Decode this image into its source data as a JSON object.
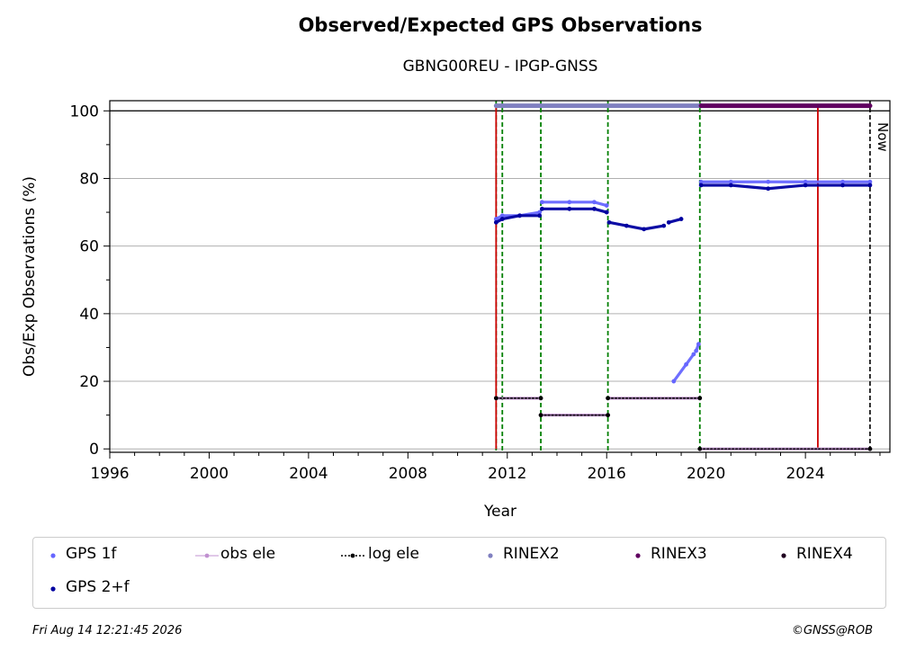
{
  "chart_data": {
    "type": "scatter",
    "title": "Observed/Expected GPS Observations",
    "subtitle": "GBNG00REU - IPGP-GNSS",
    "xlabel": "Year",
    "ylabel": "Obs/Exp Observations (%)",
    "xlim": [
      1996,
      2027.4
    ],
    "ylim": [
      -1,
      103
    ],
    "xticks": [
      1996,
      2000,
      2004,
      2008,
      2012,
      2016,
      2020,
      2024
    ],
    "yticks": [
      0,
      20,
      40,
      60,
      80,
      100
    ],
    "grid": "horizontal",
    "now_label": "Now",
    "now_x": 2026.6,
    "red_lines": [
      2011.55,
      2024.5
    ],
    "green_dashed_lines": [
      2011.55,
      2011.8,
      2013.35,
      2016.05,
      2019.75
    ],
    "series": [
      {
        "name": "GPS 1f",
        "color": "#6666ff",
        "segments": [
          {
            "x": [
              2011.55,
              2011.8,
              2012.5,
              2013.3
            ],
            "y": [
              68,
              69,
              69,
              70
            ]
          },
          {
            "x": [
              2013.4,
              2014.5,
              2015.5,
              2016.0
            ],
            "y": [
              73,
              73,
              73,
              72
            ]
          },
          {
            "x": [
              2018.7,
              2019.2,
              2019.5
            ],
            "y": [
              20,
              25,
              28
            ]
          },
          {
            "x": [
              2019.6,
              2019.7
            ],
            "y": [
              29,
              31
            ]
          },
          {
            "x": [
              2019.8,
              2021.0,
              2022.5,
              2024.0,
              2025.5,
              2026.6
            ],
            "y": [
              79,
              79,
              79,
              79,
              79,
              79
            ]
          }
        ]
      },
      {
        "name": "GPS 2+f",
        "color": "#0000a0",
        "segments": [
          {
            "x": [
              2011.55,
              2011.8,
              2012.5,
              2013.3
            ],
            "y": [
              67,
              68,
              69,
              69
            ]
          },
          {
            "x": [
              2013.4,
              2014.5,
              2015.5,
              2016.0
            ],
            "y": [
              71,
              71,
              71,
              70
            ]
          },
          {
            "x": [
              2016.1,
              2016.8,
              2017.5,
              2018.3
            ],
            "y": [
              67,
              66,
              65,
              66
            ]
          },
          {
            "x": [
              2018.5,
              2019.0
            ],
            "y": [
              67,
              68
            ]
          },
          {
            "x": [
              2019.8,
              2021.0,
              2022.5,
              2024.0,
              2025.5,
              2026.6
            ],
            "y": [
              78,
              78,
              77,
              78,
              78,
              78
            ]
          }
        ]
      },
      {
        "name": "obs ele",
        "color": "#c090d0",
        "segments": [
          {
            "x": [
              2011.55,
              2013.35
            ],
            "y": [
              15,
              15
            ]
          },
          {
            "x": [
              2013.35,
              2016.05
            ],
            "y": [
              10,
              10
            ]
          },
          {
            "x": [
              2016.05,
              2019.75
            ],
            "y": [
              15,
              15
            ]
          },
          {
            "x": [
              2019.75,
              2026.6
            ],
            "y": [
              0,
              0
            ]
          }
        ]
      },
      {
        "name": "log ele",
        "color": "#000000",
        "segments": [
          {
            "x": [
              2011.55,
              2013.35
            ],
            "y": [
              15,
              15
            ]
          },
          {
            "x": [
              2013.35,
              2016.05
            ],
            "y": [
              10,
              10
            ]
          },
          {
            "x": [
              2016.05,
              2019.75
            ],
            "y": [
              15,
              15
            ]
          },
          {
            "x": [
              2019.75,
              2026.6
            ],
            "y": [
              0,
              0
            ]
          }
        ]
      },
      {
        "name": "RINEX2",
        "color": "#8080c0",
        "segments": [
          {
            "x": [
              2011.55,
              2019.8
            ],
            "y": [
              101.5,
              101.5
            ]
          }
        ]
      },
      {
        "name": "RINEX3",
        "color": "#600060",
        "segments": [
          {
            "x": [
              2019.8,
              2026.6
            ],
            "y": [
              101.5,
              101.5
            ]
          }
        ]
      },
      {
        "name": "RINEX4",
        "color": "#200020",
        "segments": []
      }
    ]
  },
  "footer": {
    "date": "Fri Aug 14 12:21:45 2026",
    "credit": "©GNSS@ROB"
  }
}
